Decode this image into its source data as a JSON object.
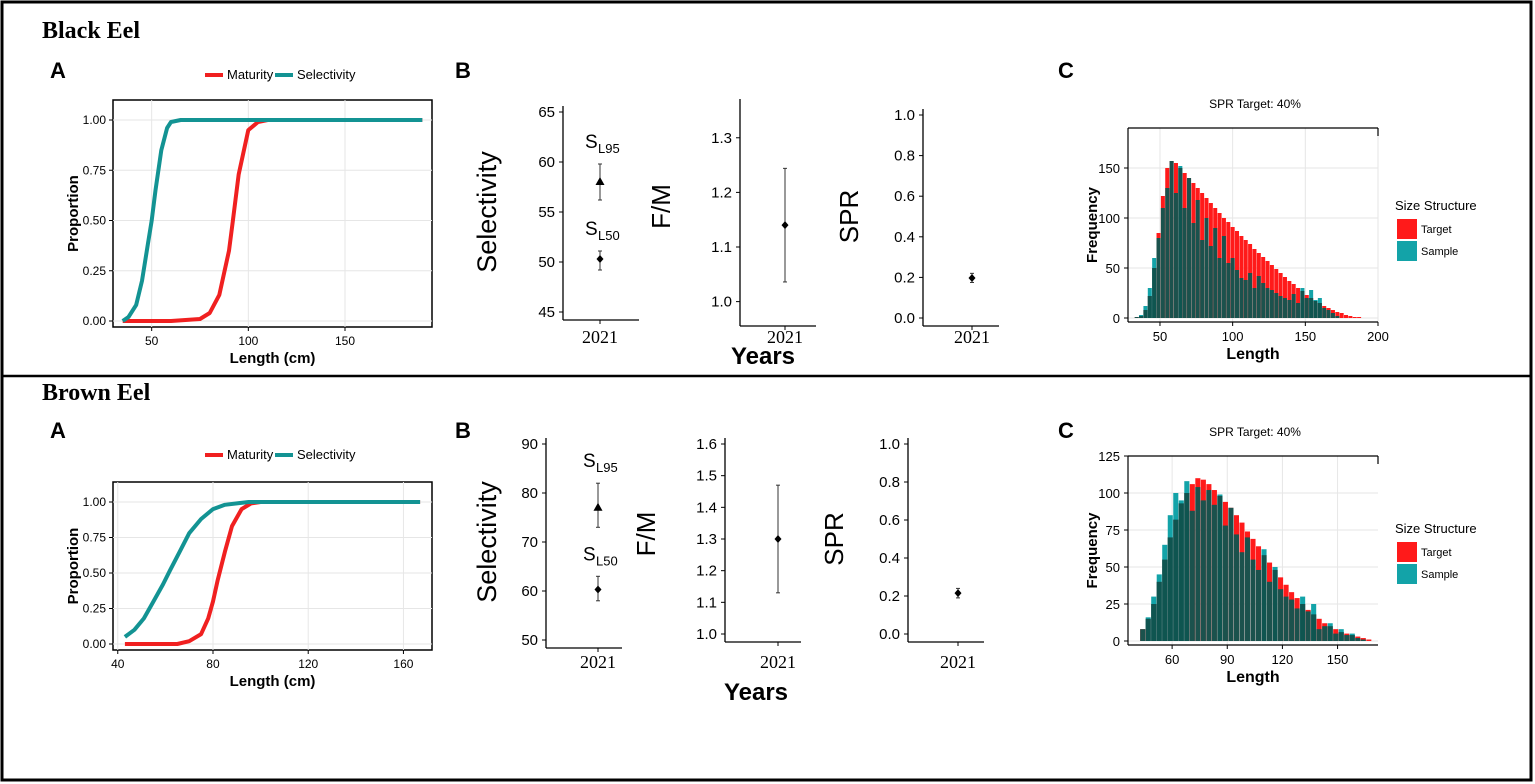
{
  "panels": [
    {
      "species": "Black Eel",
      "labels": {
        "a": "A",
        "b": "B",
        "c": "C"
      },
      "maturity_legend": [
        "Maturity",
        "Selectivity"
      ],
      "maturity_ylabel": "Proportion",
      "maturity_xlabel": "Length (cm)",
      "maturity_xticks": [
        "50",
        "100",
        "150"
      ],
      "maturity_yticks": [
        "0.00",
        "0.25",
        "0.50",
        "0.75",
        "1.00"
      ],
      "selectivity_ylabel": "Selectivity",
      "selectivity_yticks": [
        "45",
        "50",
        "55",
        "60",
        "65"
      ],
      "sl95_label": "S",
      "sl95_sub": "L95",
      "sl50_label": "S",
      "sl50_sub": "L50",
      "fm_ylabel": "F/M",
      "fm_yticks": [
        "1.0",
        "1.1",
        "1.2",
        "1.3"
      ],
      "spr_ylabel": "SPR",
      "spr_yticks": [
        "0.0",
        "0.2",
        "0.4",
        "0.6",
        "0.8",
        "1.0"
      ],
      "year_label": "2021",
      "years_label": "Years",
      "hist_title": "SPR Target: 40%",
      "hist_ylabel": "Frequency",
      "hist_xlabel": "Length",
      "hist_xticks": [
        "50",
        "100",
        "150",
        "200"
      ],
      "hist_yticks": [
        "0",
        "50",
        "100",
        "150"
      ],
      "hist_legend_title": "Size Structure",
      "hist_legend": [
        "Target",
        "Sample"
      ]
    },
    {
      "species": "Brown Eel",
      "labels": {
        "a": "A",
        "b": "B",
        "c": "C"
      },
      "maturity_legend": [
        "Maturity",
        "Selectivity"
      ],
      "maturity_ylabel": "Proportion",
      "maturity_xlabel": "Length (cm)",
      "maturity_xticks": [
        "40",
        "80",
        "120",
        "160"
      ],
      "maturity_yticks": [
        "0.00",
        "0.25",
        "0.50",
        "0.75",
        "1.00"
      ],
      "selectivity_ylabel": "Selectivity",
      "selectivity_yticks": [
        "50",
        "60",
        "70",
        "80",
        "90"
      ],
      "sl95_label": "S",
      "sl95_sub": "L95",
      "sl50_label": "S",
      "sl50_sub": "L50",
      "fm_ylabel": "F/M",
      "fm_yticks": [
        "1.0",
        "1.1",
        "1.2",
        "1.3",
        "1.4",
        "1.5",
        "1.6"
      ],
      "spr_ylabel": "SPR",
      "spr_yticks": [
        "0.0",
        "0.2",
        "0.4",
        "0.6",
        "0.8",
        "1.0"
      ],
      "year_label": "2021",
      "years_label": "Years",
      "hist_title": "SPR Target: 40%",
      "hist_ylabel": "Frequency",
      "hist_xlabel": "Length",
      "hist_xticks": [
        "60",
        "90",
        "120",
        "150"
      ],
      "hist_yticks": [
        "0",
        "25",
        "50",
        "75",
        "100",
        "125"
      ],
      "hist_legend_title": "Size Structure",
      "hist_legend": [
        "Target",
        "Sample"
      ]
    }
  ],
  "colors": {
    "maturity": "#f02020",
    "selectivity": "#139393",
    "target": "#ff1a1a",
    "sample": "#0f5550",
    "sample_light": "#13a3a8",
    "frame": "#000000",
    "grid": "#e6e6e6"
  },
  "chart_data": [
    {
      "type": "line",
      "panel": "Black Eel A",
      "xlabel": "Length (cm)",
      "ylabel": "Proportion",
      "xlim": [
        30,
        195
      ],
      "ylim": [
        0,
        1
      ],
      "series": [
        {
          "name": "Maturity",
          "x": [
            35,
            60,
            75,
            80,
            85,
            90,
            92,
            95,
            100,
            105,
            110,
            190
          ],
          "y": [
            0,
            0,
            0.01,
            0.04,
            0.13,
            0.35,
            0.5,
            0.73,
            0.95,
            0.99,
            1,
            1
          ]
        },
        {
          "name": "Selectivity",
          "x": [
            35,
            38,
            42,
            45,
            48,
            50,
            52,
            55,
            58,
            60,
            65,
            190
          ],
          "y": [
            0,
            0.02,
            0.08,
            0.2,
            0.38,
            0.5,
            0.65,
            0.85,
            0.96,
            0.99,
            1,
            1
          ]
        }
      ]
    },
    {
      "type": "scatter",
      "panel": "Black Eel B Selectivity",
      "ylabel": "Selectivity",
      "categories": [
        "2021"
      ],
      "ylim": [
        45,
        65
      ],
      "series": [
        {
          "name": "SL95",
          "values": [
            58
          ],
          "lower": [
            56.2
          ],
          "upper": [
            59.8
          ]
        },
        {
          "name": "SL50",
          "values": [
            50.3
          ],
          "lower": [
            49.2
          ],
          "upper": [
            51.1
          ]
        }
      ]
    },
    {
      "type": "scatter",
      "panel": "Black Eel B F/M",
      "ylabel": "F/M",
      "xlabel": "Years",
      "categories": [
        "2021"
      ],
      "ylim": [
        0.97,
        1.36
      ],
      "values": [
        1.14
      ],
      "lower": [
        1.036
      ],
      "upper": [
        1.244
      ]
    },
    {
      "type": "scatter",
      "panel": "Black Eel B SPR",
      "ylabel": "SPR",
      "categories": [
        "2021"
      ],
      "ylim": [
        0,
        1
      ],
      "values": [
        0.197
      ],
      "lower": [
        0.175
      ],
      "upper": [
        0.22
      ]
    },
    {
      "type": "bar",
      "panel": "Black Eel C",
      "title": "SPR Target: 40%",
      "xlabel": "Length",
      "ylabel": "Frequency",
      "xlim": [
        28,
        200
      ],
      "ylim": [
        0,
        190
      ],
      "x": [
        34,
        37,
        40,
        43,
        46,
        49,
        52,
        55,
        58,
        61,
        64,
        67,
        70,
        73,
        76,
        79,
        82,
        85,
        88,
        91,
        94,
        97,
        100,
        103,
        106,
        109,
        112,
        115,
        118,
        121,
        124,
        127,
        130,
        133,
        136,
        139,
        142,
        145,
        148,
        151,
        154,
        157,
        160,
        163,
        166,
        169,
        172,
        175,
        178,
        181,
        184,
        187,
        190
      ],
      "series": [
        {
          "name": "Target",
          "values": [
            1,
            2,
            8,
            22,
            50,
            85,
            122,
            150,
            157,
            155,
            150,
            145,
            140,
            135,
            130,
            125,
            120,
            115,
            110,
            105,
            100,
            96,
            91,
            87,
            82,
            78,
            74,
            69,
            65,
            61,
            57,
            53,
            49,
            45,
            41,
            37,
            34,
            30,
            27,
            23,
            20,
            17,
            15,
            12,
            10,
            8,
            6,
            5,
            3,
            2,
            1,
            1,
            0
          ]
        },
        {
          "name": "Sample",
          "values": [
            1,
            3,
            12,
            30,
            60,
            80,
            110,
            130,
            157,
            125,
            152,
            110,
            140,
            95,
            118,
            78,
            100,
            72,
            90,
            60,
            82,
            55,
            60,
            48,
            40,
            38,
            45,
            30,
            42,
            35,
            30,
            28,
            25,
            22,
            20,
            18,
            24,
            15,
            30,
            20,
            28,
            18,
            20,
            10,
            8,
            5,
            2,
            0,
            0,
            0,
            0,
            0,
            0
          ]
        }
      ]
    },
    {
      "type": "line",
      "panel": "Brown Eel A",
      "xlabel": "Length (cm)",
      "ylabel": "Proportion",
      "xlim": [
        38,
        172
      ],
      "ylim": [
        0,
        1
      ],
      "series": [
        {
          "name": "Maturity",
          "x": [
            43,
            65,
            70,
            75,
            78,
            80,
            82,
            85,
            88,
            92,
            96,
            100,
            167
          ],
          "y": [
            0,
            0,
            0.02,
            0.07,
            0.18,
            0.3,
            0.45,
            0.65,
            0.83,
            0.95,
            0.99,
            1,
            1
          ]
        },
        {
          "name": "Selectivity",
          "x": [
            43,
            47,
            51,
            55,
            59,
            62,
            66,
            70,
            75,
            80,
            85,
            90,
            95,
            100,
            167
          ],
          "y": [
            0.05,
            0.1,
            0.18,
            0.3,
            0.42,
            0.52,
            0.65,
            0.78,
            0.88,
            0.95,
            0.98,
            0.99,
            1,
            1,
            1
          ]
        }
      ]
    },
    {
      "type": "scatter",
      "panel": "Brown Eel B Selectivity",
      "ylabel": "Selectivity",
      "categories": [
        "2021"
      ],
      "ylim": [
        50,
        90
      ],
      "series": [
        {
          "name": "SL95",
          "values": [
            77
          ],
          "lower": [
            73
          ],
          "upper": [
            82
          ]
        },
        {
          "name": "SL50",
          "values": [
            60.3
          ],
          "lower": [
            58
          ],
          "upper": [
            63
          ]
        }
      ]
    },
    {
      "type": "scatter",
      "panel": "Brown Eel B F/M",
      "ylabel": "F/M",
      "xlabel": "Years",
      "categories": [
        "2021"
      ],
      "ylim": [
        1,
        1.6
      ],
      "values": [
        1.3
      ],
      "lower": [
        1.13
      ],
      "upper": [
        1.47
      ]
    },
    {
      "type": "scatter",
      "panel": "Brown Eel B SPR",
      "ylabel": "SPR",
      "categories": [
        "2021"
      ],
      "ylim": [
        0,
        1
      ],
      "values": [
        0.215
      ],
      "lower": [
        0.19
      ],
      "upper": [
        0.24
      ]
    },
    {
      "type": "bar",
      "panel": "Brown Eel C",
      "title": "SPR Target: 40%",
      "xlabel": "Length",
      "ylabel": "Frequency",
      "xlim": [
        36,
        172
      ],
      "ylim": [
        0,
        125
      ],
      "x": [
        44,
        47,
        50,
        53,
        56,
        59,
        62,
        65,
        68,
        71,
        74,
        77,
        80,
        83,
        86,
        89,
        92,
        95,
        98,
        101,
        104,
        107,
        110,
        113,
        116,
        119,
        122,
        125,
        128,
        131,
        134,
        137,
        140,
        143,
        146,
        149,
        152,
        155,
        158,
        161,
        164,
        167
      ],
      "series": [
        {
          "name": "Target",
          "values": [
            8,
            15,
            25,
            40,
            55,
            70,
            82,
            93,
            100,
            106,
            110,
            109,
            106,
            102,
            98,
            94,
            90,
            85,
            80,
            74,
            69,
            64,
            58,
            53,
            48,
            43,
            38,
            33,
            29,
            25,
            21,
            18,
            15,
            12,
            10,
            8,
            6,
            5,
            4,
            3,
            2,
            1
          ]
        },
        {
          "name": "Sample",
          "values": [
            8,
            16,
            30,
            45,
            65,
            85,
            100,
            95,
            108,
            88,
            104,
            95,
            102,
            92,
            99,
            78,
            90,
            72,
            60,
            70,
            55,
            48,
            62,
            40,
            50,
            35,
            30,
            28,
            22,
            30,
            20,
            25,
            8,
            10,
            12,
            5,
            8,
            4,
            5,
            2,
            1,
            0
          ]
        }
      ]
    }
  ]
}
